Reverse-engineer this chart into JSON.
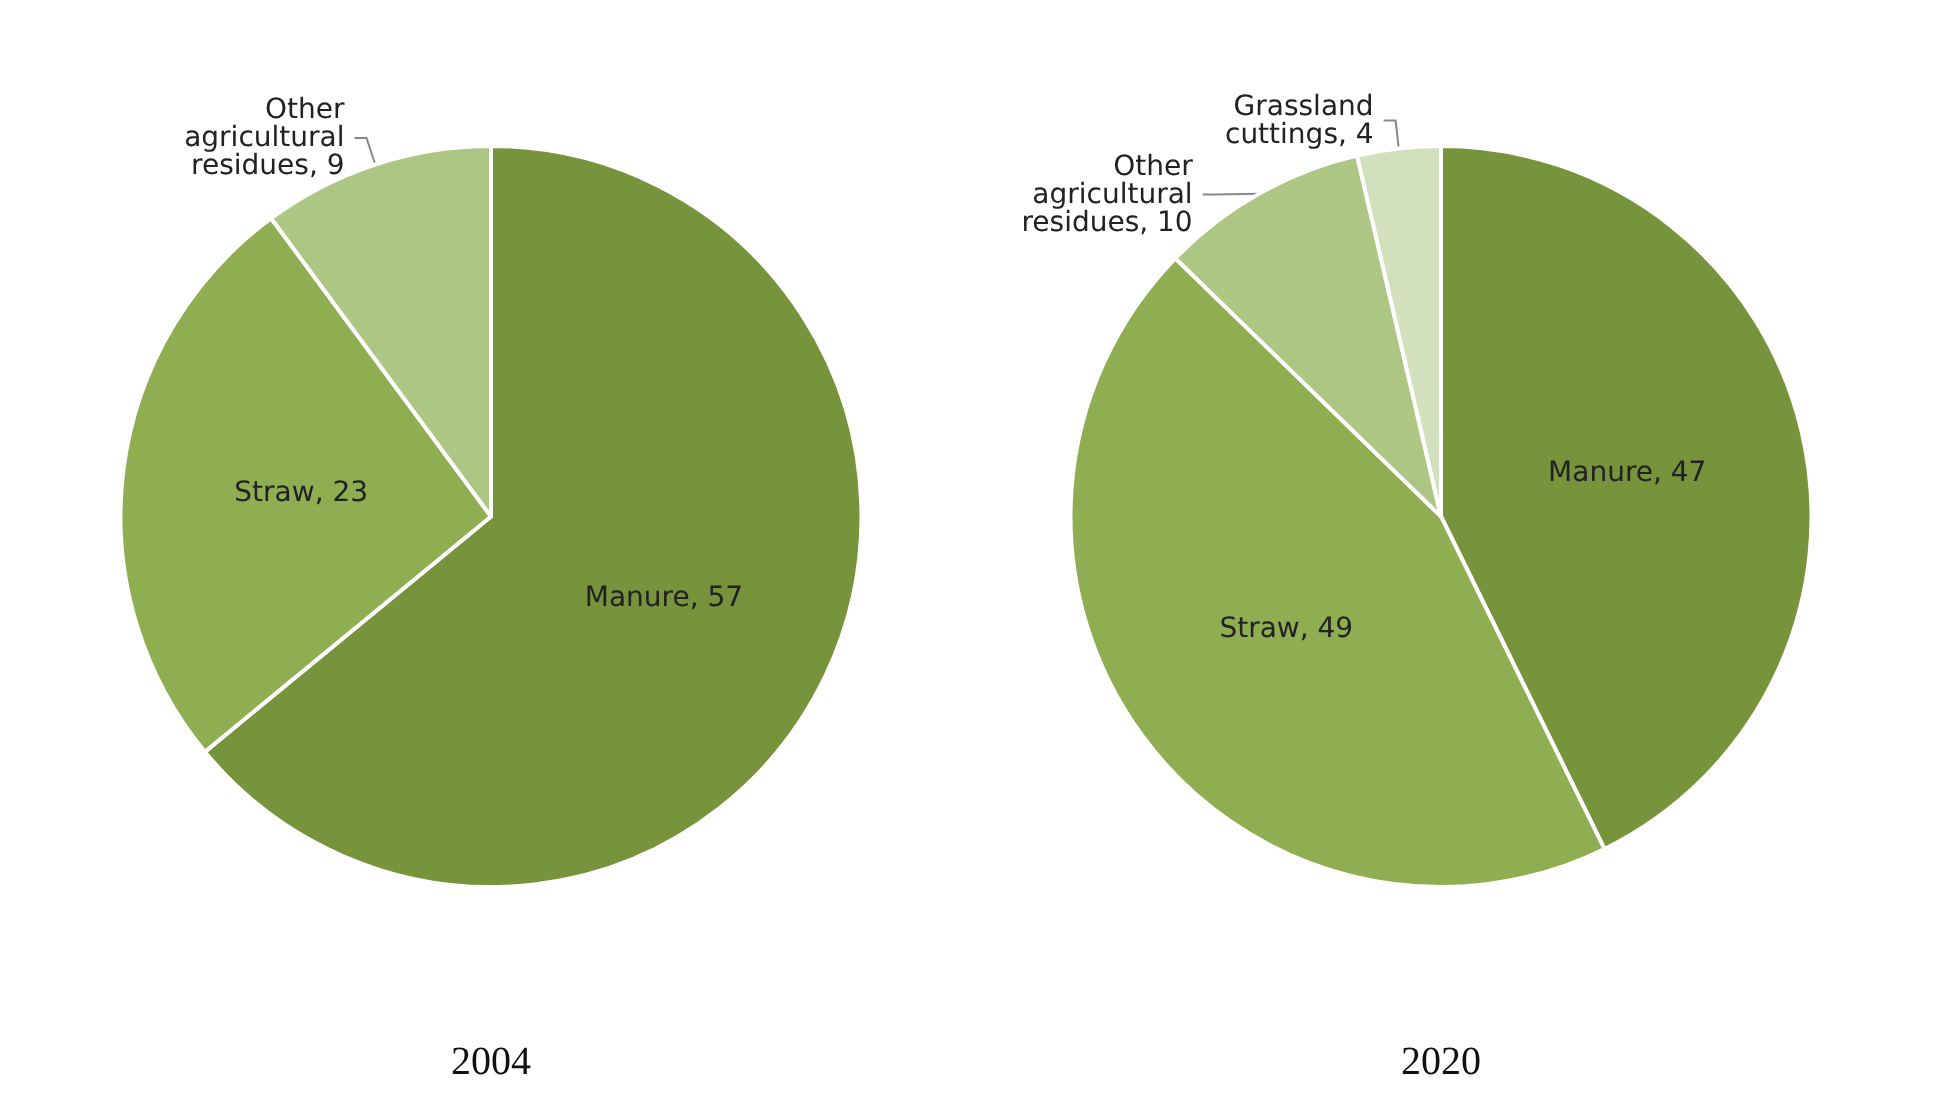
{
  "chart_data": [
    {
      "type": "pie",
      "title": "2004",
      "categories": [
        "Manure",
        "Straw",
        "Other agricultural residues"
      ],
      "values": [
        57,
        23,
        9
      ],
      "colors": [
        "#77933c",
        "#8fae52",
        "#adc683"
      ],
      "value_labels": [
        ", 57",
        ", 23",
        ", 9"
      ]
    },
    {
      "type": "pie",
      "title": "2020",
      "categories": [
        "Manure",
        "Straw",
        "Other agricultural residues",
        "Grassland cuttings"
      ],
      "values": [
        47,
        49,
        10,
        4
      ],
      "colors": [
        "#77933c",
        "#8fae52",
        "#adc683",
        "#d3e0bd"
      ],
      "value_labels": [
        ", 47",
        ", 49",
        ", 10",
        ", 4"
      ]
    }
  ]
}
